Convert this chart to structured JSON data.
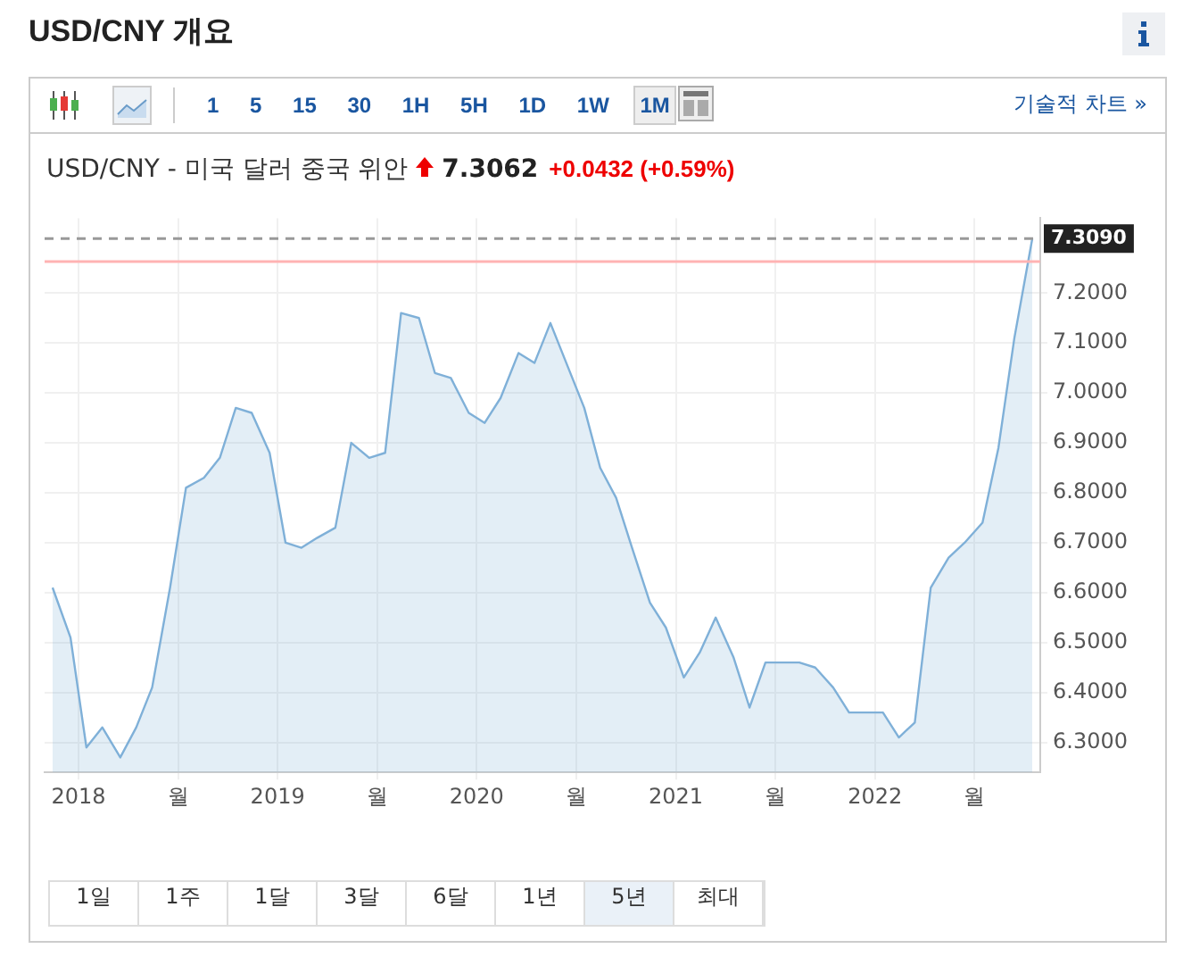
{
  "chart_data": {
    "type": "area",
    "title": "USD/CNY 개요",
    "subtitle": "USD/CNY - 미국 달러 중국 위안",
    "annotations": [
      "7.3062",
      "+0.0432 (+0.59%)",
      "1 5 15 30 1H 5H 1D 1W 1M",
      "기술적 차트 »",
      "1일",
      "1주",
      "1달",
      "3달",
      "6달",
      "1년",
      "5년",
      "최대"
    ],
    "x": [
      2017.87,
      2017.96,
      2018.04,
      2018.12,
      2018.21,
      2018.29,
      2018.37,
      2018.46,
      2018.54,
      2018.63,
      2018.71,
      2018.79,
      2018.87,
      2018.96,
      2019.04,
      2019.12,
      2019.2,
      2019.29,
      2019.37,
      2019.46,
      2019.54,
      2019.62,
      2019.71,
      2019.79,
      2019.87,
      2019.96,
      2020.04,
      2020.12,
      2020.21,
      2020.29,
      2020.37,
      2020.45,
      2020.54,
      2020.62,
      2020.7,
      2020.78,
      2020.87,
      2020.95,
      2021.04,
      2021.12,
      2021.2,
      2021.29,
      2021.37,
      2021.45,
      2021.54,
      2021.62,
      2021.7,
      2021.79,
      2021.87,
      2021.95,
      2022.04,
      2022.12,
      2022.2,
      2022.28,
      2022.37,
      2022.45,
      2022.54,
      2022.62,
      2022.7,
      2022.79
    ],
    "series": [
      {
        "color": "#7fb0d8",
        "values": [
          6.61,
          6.51,
          6.29,
          6.33,
          6.27,
          6.33,
          6.41,
          6.61,
          6.81,
          6.83,
          6.87,
          6.97,
          6.96,
          6.88,
          6.7,
          6.69,
          6.71,
          6.73,
          6.9,
          6.87,
          6.88,
          7.16,
          7.15,
          7.04,
          7.03,
          6.96,
          6.94,
          6.99,
          7.08,
          7.06,
          7.14,
          7.06,
          6.97,
          6.85,
          6.79,
          6.69,
          6.58,
          6.53,
          6.43,
          6.48,
          6.55,
          6.47,
          6.37,
          6.46,
          6.46,
          6.46,
          6.45,
          6.41,
          6.36,
          6.36,
          6.36,
          6.31,
          6.34,
          6.61,
          6.67,
          6.7,
          6.74,
          6.89,
          7.11,
          7.309
        ]
      }
    ],
    "xlim": [
      2017.83,
      2022.83
    ],
    "xticks": [
      {
        "value": 2018,
        "label": "2018"
      },
      {
        "value": 2018.5,
        "label": "월"
      },
      {
        "value": 2019,
        "label": "2019"
      },
      {
        "value": 2019.5,
        "label": "월"
      },
      {
        "value": 2020,
        "label": "2020"
      },
      {
        "value": 2020.5,
        "label": "월"
      },
      {
        "value": 2021,
        "label": "2021"
      },
      {
        "value": 2021.5,
        "label": "월"
      },
      {
        "value": 2022,
        "label": "2022"
      },
      {
        "value": 2022.5,
        "label": "월"
      }
    ],
    "ylim": [
      6.24,
      7.35
    ],
    "yticks": [
      {
        "value": 6.3,
        "label": "6.3000"
      },
      {
        "value": 6.4,
        "label": "6.4000"
      },
      {
        "value": 6.5,
        "label": "6.5000"
      },
      {
        "value": 6.6,
        "label": "6.6000"
      },
      {
        "value": 6.7,
        "label": "6.7000"
      },
      {
        "value": 6.8,
        "label": "6.8000"
      },
      {
        "value": 6.9,
        "label": "6.9000"
      },
      {
        "value": 7.0,
        "label": "7.0000"
      },
      {
        "value": 7.1,
        "label": "7.1000"
      },
      {
        "value": 7.2,
        "label": "7.2000"
      }
    ],
    "ref_lines": [
      {
        "axis": "y",
        "value": 7.309,
        "label": "7.3090",
        "color": "#999999",
        "line_style": "dashed"
      },
      {
        "axis": "y",
        "value": 7.263,
        "color": "#ffb3b3",
        "line_style": "solid"
      }
    ],
    "grid": true,
    "legend": false,
    "marker": "none",
    "line_style": "solid"
  }
}
